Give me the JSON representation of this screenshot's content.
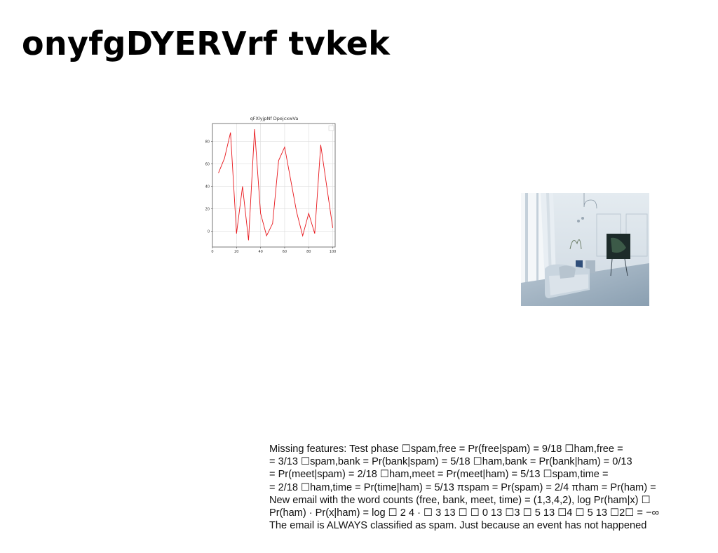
{
  "page": {
    "title": "onyfgDYERVrf tvkek"
  },
  "chart_data": {
    "type": "line",
    "title": "qFXlyjpNf DpejcxwVa",
    "x": [
      5,
      10,
      15,
      20,
      25,
      30,
      35,
      40,
      45,
      50,
      55,
      60,
      65,
      70,
      75,
      80,
      85,
      90,
      95,
      100
    ],
    "series": [
      {
        "values": [
          52,
          65,
          88,
          -2,
          40,
          -8,
          91,
          16,
          -4,
          7,
          63,
          75,
          46,
          17,
          -4,
          16,
          -2,
          77,
          40,
          3
        ],
        "color": "#e8161b"
      }
    ],
    "xlim": [
      0,
      102
    ],
    "ylim": [
      -14,
      96
    ],
    "xticks": [
      0,
      20,
      40,
      60,
      80,
      100
    ],
    "yticks": [
      0,
      20,
      40,
      60,
      80
    ],
    "grid": true,
    "legend": "top-right",
    "xlabel": "",
    "ylabel": ""
  },
  "image": {
    "alt": "bright living room with sofa, television and large window",
    "colors": {
      "wall": "#d9e2ea",
      "window": "#eef3f6",
      "sofa": "#c7d3dd",
      "floor": "#9fb2c2",
      "tv": "#1d2b2a"
    }
  },
  "text": {
    "lines": [
      "Missing features: Test phase ☐spam,free = Pr(free|spam) = 9/18 ☐ham,free =",
      "= 3/13 ☐spam,bank = Pr(bank|spam) = 5/18 ☐ham,bank = Pr(bank|ham) = 0/13",
      "= Pr(meet|spam) = 2/18 ☐ham,meet = Pr(meet|ham) = 5/13 ☐spam,time =",
      "= 2/18 ☐ham,time = Pr(time|ham) = 5/13 πspam = Pr(spam) = 2/4 πham = Pr(ham) =",
      "New email with the word counts (free, bank, meet, time) = (1,3,4,2), log Pr(ham|x) ☐",
      "Pr(ham) · Pr(x|ham) = log ☐ 2 4 · ☐ 3 13 ☐ ☐ 0 13 ☐3 ☐ 5 13 ☐4 ☐ 5 13 ☐2☐ = −∞",
      "The email is ALWAYS classified as spam. Just because an event has not happened"
    ]
  }
}
